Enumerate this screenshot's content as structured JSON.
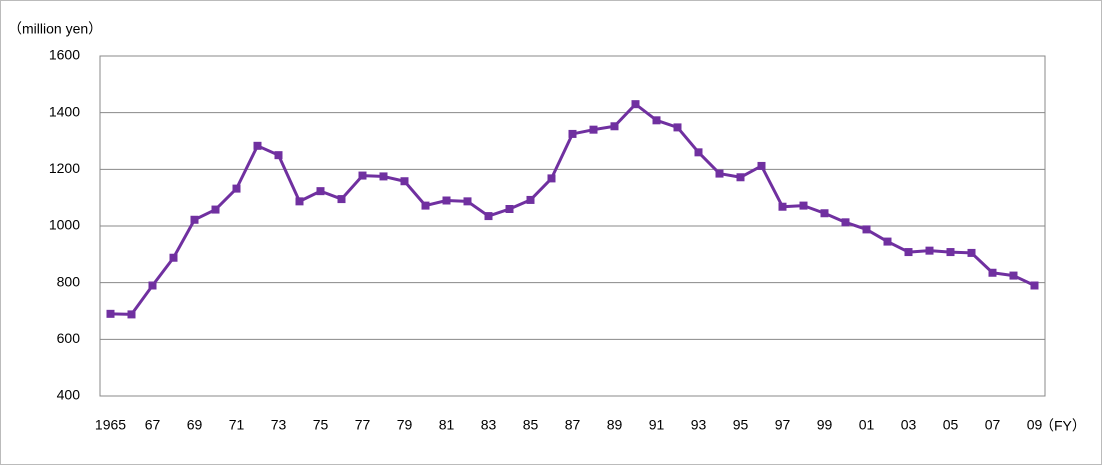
{
  "chart_data": {
    "type": "line",
    "y_label": "（million yen）",
    "x_label": "（FY）",
    "categories": [
      "1965",
      null,
      "67",
      null,
      "69",
      null,
      "71",
      null,
      "73",
      null,
      "75",
      null,
      "77",
      null,
      "79",
      null,
      "81",
      null,
      "83",
      null,
      "85",
      null,
      "87",
      null,
      "89",
      null,
      "91",
      null,
      "93",
      null,
      "95",
      null,
      "97",
      null,
      "99",
      null,
      "01",
      null,
      "03",
      null,
      "05",
      null,
      "07",
      null,
      "09"
    ],
    "series": [
      {
        "color": "#7030a0",
        "values": [
          690,
          688,
          790,
          888,
          1022,
          1058,
          1132,
          1283,
          1250,
          1087,
          1123,
          1095,
          1178,
          1175,
          1158,
          1072,
          1090,
          1087,
          1035,
          1060,
          1092,
          1168,
          1325,
          1340,
          1352,
          1430,
          1373,
          1348,
          1260,
          1185,
          1172,
          1212,
          1068,
          1072,
          1045,
          1013,
          988,
          945,
          908,
          913,
          908,
          905,
          835,
          825,
          790
        ]
      }
    ],
    "ylim": [
      400,
      1600
    ],
    "yticks": [
      400,
      600,
      800,
      1000,
      1200,
      1400,
      1600
    ],
    "grid": true
  }
}
